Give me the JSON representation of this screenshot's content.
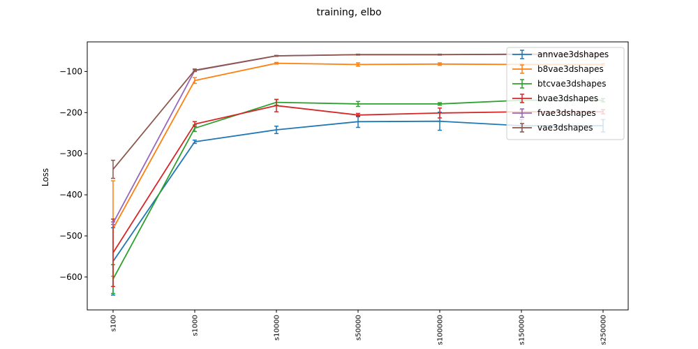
{
  "chart_data": {
    "type": "line",
    "title": "training, elbo",
    "xlabel": "",
    "ylabel": "Loss",
    "categories": [
      "s100",
      "s1000",
      "s10000",
      "s50000",
      "s100000",
      "s150000",
      "s250000"
    ],
    "ylim": [
      -680,
      -28
    ],
    "yticks": [
      -100,
      -200,
      -300,
      -400,
      -500,
      -600
    ],
    "ytick_labels": [
      "−100",
      "−200",
      "−300",
      "−400",
      "−500",
      "−600"
    ],
    "grid": false,
    "legend_position": "top-right",
    "error_bars": true,
    "series": [
      {
        "name": "annvae3dshapes",
        "color": "#1f77b4",
        "values": [
          -562,
          -271,
          -242,
          -222,
          -221,
          -232,
          -232
        ],
        "errors": [
          82,
          4,
          9,
          14,
          22,
          15,
          15
        ]
      },
      {
        "name": "b8vae3dshapes",
        "color": "#ff7f0e",
        "values": [
          -482,
          -122,
          -80,
          -83,
          -82,
          -83,
          -83
        ],
        "errors": [
          116,
          7,
          2,
          4,
          3,
          2,
          2
        ]
      },
      {
        "name": "btcvae3dshapes",
        "color": "#2ca02c",
        "values": [
          -605,
          -238,
          -175,
          -179,
          -179,
          -170,
          -170
        ],
        "errors": [
          35,
          8,
          7,
          6,
          3,
          4,
          4
        ]
      },
      {
        "name": "bvae3dshapes",
        "color": "#d62728",
        "values": [
          -541,
          -228,
          -183,
          -206,
          -201,
          -198,
          -198
        ],
        "errors": [
          82,
          6,
          15,
          4,
          12,
          5,
          5
        ]
      },
      {
        "name": "fvae3dshapes",
        "color": "#9467bd",
        "values": [
          -469,
          -98,
          -62,
          -59,
          -59,
          -58,
          -58
        ],
        "errors": [
          3,
          2,
          1,
          1,
          1,
          1,
          1
        ]
      },
      {
        "name": "vae3dshapes",
        "color": "#8c564b",
        "values": [
          -338,
          -97,
          -62,
          -59,
          -59,
          -58,
          -58
        ],
        "errors": [
          22,
          3,
          1,
          1,
          1,
          1,
          1
        ]
      }
    ]
  }
}
